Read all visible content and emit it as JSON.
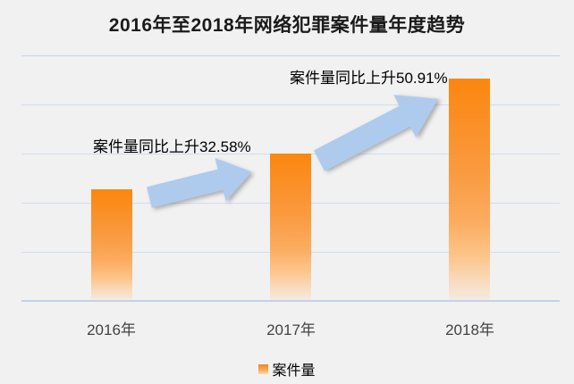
{
  "title": "2016年至2018年网络犯罪案件量年度趋势",
  "annotations": [
    {
      "text": "案件量同比上升32.58%",
      "applies_to": "2017年"
    },
    {
      "text": "案件量同比上升50.91%",
      "applies_to": "2018年"
    }
  ],
  "legend": {
    "label": "案件量"
  },
  "colors": {
    "background": "#F1F1F1",
    "bar_top": "#FB860E",
    "bar_fade_bottom": "#F3EBE1",
    "arrow_fill": "#AECBED",
    "gridline": "#CFDCEE",
    "baseline": "#C3D2E8",
    "title_text": "#1A1A1A",
    "axis_label_text": "#424242",
    "annotation_text": "#000000"
  },
  "chart_data": {
    "type": "bar",
    "title": "2016年至2018年网络犯罪案件量年度趋势",
    "categories": [
      "2016年",
      "2017年",
      "2018年"
    ],
    "series": [
      {
        "name": "案件量",
        "values": [
          100,
          132.58,
          200.09
        ]
      }
    ],
    "value_scale": "relative index estimated from bar heights, 2016 = 100 (no y-axis labels shown)",
    "yoy_growth_pct": [
      null,
      32.58,
      50.91
    ],
    "xlabel": "",
    "ylabel": "",
    "ylim": [
      0,
      222
    ],
    "grid": true,
    "gridline_count": 6,
    "legend_position": "bottom",
    "annotations_between_bars": "block arrows pointing up-right indicating growth"
  }
}
